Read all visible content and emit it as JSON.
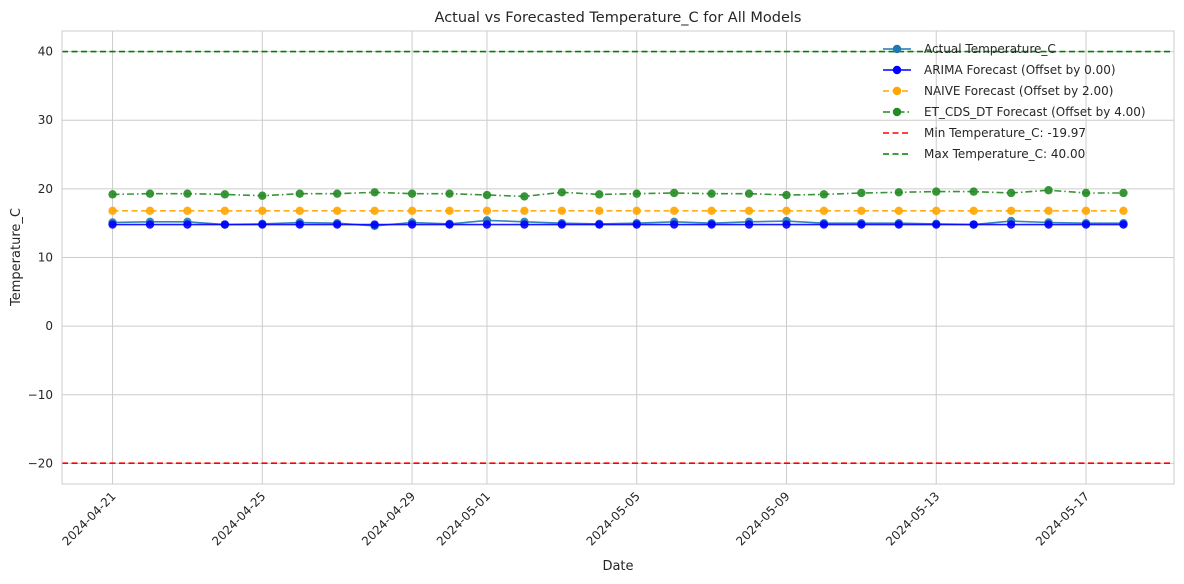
{
  "chart_data": {
    "type": "line",
    "title": "Actual vs Forecasted Temperature_C for All Models",
    "xlabel": "Date",
    "ylabel": "Temperature_C",
    "ylim": [
      -23,
      43
    ],
    "yticks": [
      -20,
      -10,
      0,
      10,
      20,
      30,
      40
    ],
    "ytick_labels": [
      "−20",
      "−10",
      "0",
      "10",
      "20",
      "30",
      "40"
    ],
    "x_start": "2024-04-21",
    "x_end": "2024-05-18",
    "xticks": [
      "2024-04-21",
      "2024-04-25",
      "2024-04-29",
      "2024-05-01",
      "2024-05-05",
      "2024-05-09",
      "2024-05-13",
      "2024-05-17"
    ],
    "grid": true,
    "legend_position": "top-right",
    "series": [
      {
        "name": "Actual Temperature_C",
        "color": "#1f77b4",
        "style": "solid-marker",
        "values": [
          15.1,
          15.2,
          15.2,
          14.8,
          14.9,
          15.1,
          15.0,
          14.6,
          15.1,
          14.9,
          15.4,
          15.2,
          15.0,
          14.9,
          15.0,
          15.2,
          15.0,
          15.2,
          15.3,
          15.0,
          15.0,
          15.0,
          14.9,
          14.8,
          15.3,
          15.1,
          15.0,
          15.0
        ]
      },
      {
        "name": "ARIMA Forecast (Offset by 0.00)",
        "color": "#0000ff",
        "style": "solid-marker",
        "values": [
          14.8,
          14.8,
          14.8,
          14.8,
          14.8,
          14.8,
          14.8,
          14.8,
          14.8,
          14.8,
          14.8,
          14.8,
          14.8,
          14.8,
          14.8,
          14.8,
          14.8,
          14.8,
          14.8,
          14.8,
          14.8,
          14.8,
          14.8,
          14.8,
          14.8,
          14.8,
          14.8,
          14.8
        ]
      },
      {
        "name": "NAIVE Forecast (Offset by 2.00)",
        "color": "#ffa500",
        "style": "dashed-marker",
        "values": [
          16.8,
          16.8,
          16.8,
          16.8,
          16.8,
          16.8,
          16.8,
          16.8,
          16.8,
          16.8,
          16.8,
          16.8,
          16.8,
          16.8,
          16.8,
          16.8,
          16.8,
          16.8,
          16.8,
          16.8,
          16.8,
          16.8,
          16.8,
          16.8,
          16.8,
          16.8,
          16.8,
          16.8
        ]
      },
      {
        "name": "ET_CDS_DT Forecast (Offset by 4.00)",
        "color": "#228b22",
        "style": "dashdot-marker",
        "values": [
          19.2,
          19.3,
          19.3,
          19.2,
          19.0,
          19.3,
          19.3,
          19.5,
          19.3,
          19.3,
          19.1,
          18.9,
          19.5,
          19.2,
          19.3,
          19.4,
          19.3,
          19.3,
          19.1,
          19.2,
          19.4,
          19.5,
          19.6,
          19.6,
          19.4,
          19.8,
          19.4,
          19.4
        ]
      }
    ],
    "reference_lines": [
      {
        "name": "Min Temperature_C: -19.97",
        "value": -19.97,
        "color": "#ff0000"
      },
      {
        "name": "Max Temperature_C: 40.00",
        "value": 40.0,
        "color": "#008000"
      }
    ]
  }
}
